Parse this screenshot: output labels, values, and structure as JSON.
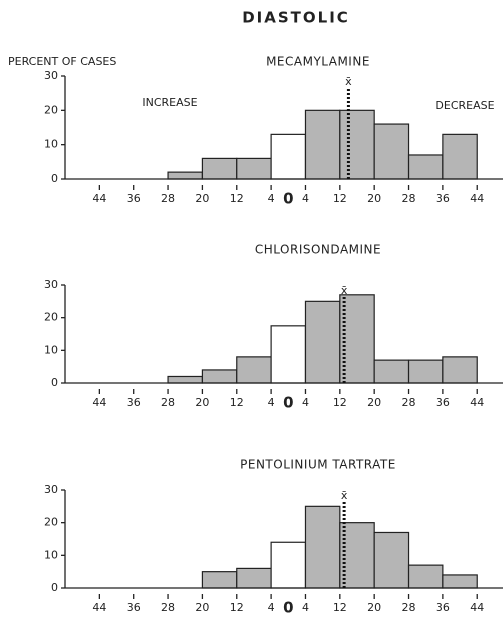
{
  "title": "DIASTOLIC",
  "chart_data": [
    {
      "type": "histogram",
      "title": "MECAMYLAMINE",
      "ylabel": "PERCENT OF CASES",
      "annotations": [
        "INCREASE",
        "DECREASE"
      ],
      "bins": [
        -44,
        -36,
        -28,
        -20,
        -12,
        -4,
        4,
        12,
        20,
        28,
        36,
        44
      ],
      "values": [
        0,
        0,
        2,
        6,
        6,
        13,
        20,
        20,
        16,
        7,
        13
      ],
      "colors": [
        "#b5b5b5",
        "#b5b5b5",
        "#b5b5b5",
        "#b5b5b5",
        "#b5b5b5",
        "#ffffff",
        "#b5b5b5",
        "#b5b5b5",
        "#b5b5b5",
        "#b5b5b5",
        "#b5b5b5"
      ],
      "mean": 14,
      "mean_label": "x̄",
      "xlim": [
        -52,
        50
      ],
      "ylim": [
        0,
        30
      ],
      "yticks": [
        0,
        10,
        20,
        30
      ],
      "xticks": [
        {
          "value": -44,
          "label": "44"
        },
        {
          "value": -36,
          "label": "36"
        },
        {
          "value": -28,
          "label": "28"
        },
        {
          "value": -20,
          "label": "20"
        },
        {
          "value": -12,
          "label": "12"
        },
        {
          "value": -4,
          "label": "4"
        },
        0,
        4,
        12,
        20,
        28,
        36,
        44
      ]
    },
    {
      "type": "histogram",
      "title": "CHLORISONDAMINE",
      "bins": [
        -44,
        -36,
        -28,
        -20,
        -12,
        -4,
        4,
        12,
        20,
        28,
        36,
        44
      ],
      "values": [
        0,
        0,
        2,
        4,
        8,
        17.5,
        25,
        27,
        7,
        7,
        8
      ],
      "colors": [
        "#b5b5b5",
        "#b5b5b5",
        "#b5b5b5",
        "#b5b5b5",
        "#b5b5b5",
        "#ffffff",
        "#b5b5b5",
        "#b5b5b5",
        "#b5b5b5",
        "#b5b5b5",
        "#b5b5b5"
      ],
      "mean": 13,
      "mean_label": "x̄",
      "xlim": [
        -52,
        50
      ],
      "ylim": [
        0,
        30
      ],
      "yticks": [
        0,
        10,
        20,
        30
      ],
      "xticks": [
        {
          "value": -44,
          "label": "44"
        },
        {
          "value": -36,
          "label": "36"
        },
        {
          "value": -28,
          "label": "28"
        },
        {
          "value": -20,
          "label": "20"
        },
        {
          "value": -12,
          "label": "12"
        },
        {
          "value": -4,
          "label": "4"
        },
        0,
        4,
        12,
        20,
        28,
        36,
        44
      ]
    },
    {
      "type": "histogram",
      "title": "PENTOLINIUM  TARTRATE",
      "bins": [
        -44,
        -36,
        -28,
        -20,
        -12,
        -4,
        4,
        12,
        20,
        28,
        36,
        44
      ],
      "values": [
        0,
        0,
        0,
        5,
        6,
        14,
        25,
        20,
        17,
        7,
        4
      ],
      "colors": [
        "#b5b5b5",
        "#b5b5b5",
        "#b5b5b5",
        "#b5b5b5",
        "#b5b5b5",
        "#ffffff",
        "#b5b5b5",
        "#b5b5b5",
        "#b5b5b5",
        "#b5b5b5",
        "#b5b5b5"
      ],
      "mean": 13,
      "mean_label": "x̄",
      "xlim": [
        -52,
        50
      ],
      "ylim": [
        0,
        30
      ],
      "yticks": [
        0,
        10,
        20,
        30
      ],
      "xticks": [
        {
          "value": -44,
          "label": "44"
        },
        {
          "value": -36,
          "label": "36"
        },
        {
          "value": -28,
          "label": "28"
        },
        {
          "value": -20,
          "label": "20"
        },
        {
          "value": -12,
          "label": "12"
        },
        {
          "value": -4,
          "label": "4"
        },
        0,
        4,
        12,
        20,
        28,
        36,
        44
      ]
    }
  ]
}
